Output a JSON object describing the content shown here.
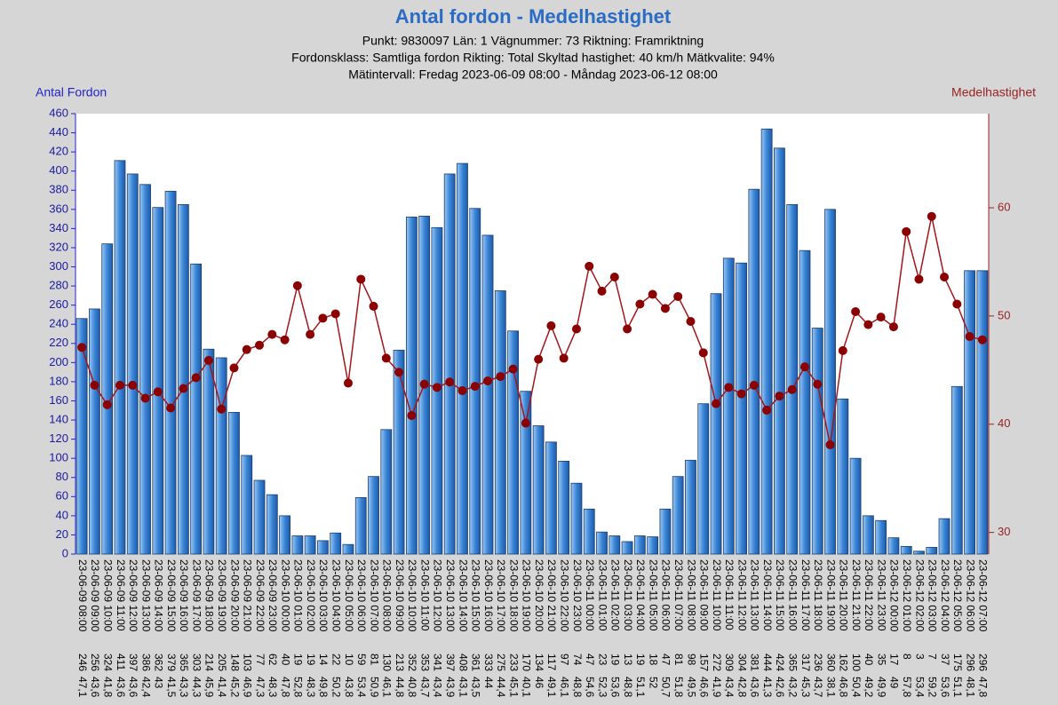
{
  "chart_data": {
    "type": "bar+line",
    "title": "Antal fordon - Medelhastighet",
    "subtitle": [
      "Punkt: 9830097  Län: 1  Vägnummer: 73 Riktning: Framriktning",
      "Fordonsklass: Samtliga fordon Rikting: Total Skyltad hastighet: 40 km/h Mätkvalite: 94%",
      "Mätintervall: Fredag 2023-06-09 08:00 - Måndag 2023-06-12 08:00"
    ],
    "ylabel": "Antal Fordon",
    "y2label": "Medelhastighet",
    "categories": [
      "23-06-09 08:00",
      "23-06-09 09:00",
      "23-06-09 10:00",
      "23-06-09 11:00",
      "23-06-09 12:00",
      "23-06-09 13:00",
      "23-06-09 14:00",
      "23-06-09 15:00",
      "23-06-09 16:00",
      "23-06-09 17:00",
      "23-06-09 18:00",
      "23-06-09 19:00",
      "23-06-09 20:00",
      "23-06-09 21:00",
      "23-06-09 22:00",
      "23-06-09 23:00",
      "23-06-10 00:00",
      "23-06-10 01:00",
      "23-06-10 02:00",
      "23-06-10 03:00",
      "23-06-10 04:00",
      "23-06-10 05:00",
      "23-06-10 06:00",
      "23-06-10 07:00",
      "23-06-10 08:00",
      "23-06-10 09:00",
      "23-06-10 10:00",
      "23-06-10 11:00",
      "23-06-10 12:00",
      "23-06-10 13:00",
      "23-06-10 14:00",
      "23-06-10 15:00",
      "23-06-10 16:00",
      "23-06-10 17:00",
      "23-06-10 18:00",
      "23-06-10 19:00",
      "23-06-10 20:00",
      "23-06-10 21:00",
      "23-06-10 22:00",
      "23-06-10 23:00",
      "23-06-11 00:00",
      "23-06-11 01:00",
      "23-06-11 02:00",
      "23-06-11 03:00",
      "23-06-11 04:00",
      "23-06-11 05:00",
      "23-06-11 06:00",
      "23-06-11 07:00",
      "23-06-11 08:00",
      "23-06-11 09:00",
      "23-06-11 10:00",
      "23-06-11 11:00",
      "23-06-11 12:00",
      "23-06-11 13:00",
      "23-06-11 14:00",
      "23-06-11 15:00",
      "23-06-11 16:00",
      "23-06-11 17:00",
      "23-06-11 18:00",
      "23-06-11 19:00",
      "23-06-11 20:00",
      "23-06-11 21:00",
      "23-06-11 22:00",
      "23-06-11 23:00",
      "23-06-12 00:00",
      "23-06-12 01:00",
      "23-06-12 02:00",
      "23-06-12 03:00",
      "23-06-12 04:00",
      "23-06-12 05:00",
      "23-06-12 06:00",
      "23-06-12 07:00"
    ],
    "series": [
      {
        "name": "Antal fordon",
        "color": "#2f7fd6",
        "type": "bar",
        "values": [
          246,
          256,
          324,
          411,
          397,
          386,
          362,
          379,
          365,
          303,
          214,
          205,
          148,
          103,
          77,
          62,
          40,
          19,
          19,
          14,
          22,
          10,
          59,
          81,
          130,
          213,
          352,
          353,
          341,
          397,
          408,
          361,
          333,
          275,
          233,
          170,
          134,
          117,
          97,
          74,
          47,
          23,
          19,
          13,
          19,
          18,
          47,
          81,
          98,
          157,
          272,
          309,
          304,
          381,
          444,
          424,
          365,
          317,
          236,
          360,
          162,
          100,
          40,
          35,
          17,
          8,
          3,
          7,
          37,
          175,
          296,
          296
        ]
      },
      {
        "name": "Medelhastighet",
        "color": "#a3161b",
        "type": "line",
        "axis": "y2",
        "values": [
          47.1,
          43.6,
          41.8,
          43.6,
          43.6,
          42.4,
          43,
          41.5,
          43.3,
          44.3,
          45.9,
          41.4,
          45.2,
          46.9,
          47.3,
          48.3,
          47.8,
          52.8,
          48.3,
          49.8,
          50.2,
          43.8,
          53.4,
          50.9,
          46.1,
          44.8,
          40.8,
          43.7,
          43.4,
          43.9,
          43.1,
          43.5,
          44,
          44.4,
          45.1,
          40.1,
          46,
          49.1,
          46.1,
          48.8,
          54.6,
          52.3,
          53.6,
          48.8,
          51.1,
          52,
          50.7,
          51.8,
          49.5,
          46.6,
          41.9,
          43.4,
          42.8,
          43.6,
          41.3,
          42.6,
          43.2,
          45.3,
          43.7,
          38.1,
          46.8,
          50.4,
          49.2,
          49.9,
          49,
          57.8,
          53.4,
          59.2,
          53.6,
          51.1,
          48.1,
          47.8
        ],
        "value_labels": [
          "47,1",
          "43,6",
          "41,8",
          "43,6",
          "43,6",
          "42,4",
          "43",
          "41,5",
          "43,3",
          "44,3",
          "45,9",
          "41,4",
          "45,2",
          "46,9",
          "47,3",
          "48,3",
          "47,8",
          "52,8",
          "48,3",
          "49,8",
          "50,2",
          "43,8",
          "53,4",
          "50,9",
          "46,1",
          "44,8",
          "40,8",
          "43,7",
          "43,4",
          "43,9",
          "43,1",
          "43,5",
          "44",
          "44,4",
          "45,1",
          "40,1",
          "46",
          "49,1",
          "46,1",
          "48,8",
          "54,6",
          "52,3",
          "53,6",
          "48,8",
          "51,1",
          "52",
          "50,7",
          "51,8",
          "49,5",
          "46,6",
          "41,9",
          "43,4",
          "42,8",
          "43,6",
          "41,3",
          "42,6",
          "43,2",
          "45,3",
          "43,7",
          "38,1",
          "46,8",
          "50,4",
          "49,2",
          "49,9",
          "49",
          "57,8",
          "53,4",
          "59,2",
          "53,6",
          "51,1",
          "48,1",
          "47,8"
        ]
      }
    ],
    "ylim": [
      0,
      460
    ],
    "yticks": [
      0,
      20,
      40,
      60,
      80,
      100,
      120,
      140,
      160,
      180,
      200,
      220,
      240,
      260,
      280,
      300,
      320,
      340,
      360,
      380,
      400,
      420,
      440,
      460
    ],
    "y2lim": [
      28,
      68.7
    ],
    "y2ticks": [
      30,
      40,
      50,
      60
    ]
  }
}
